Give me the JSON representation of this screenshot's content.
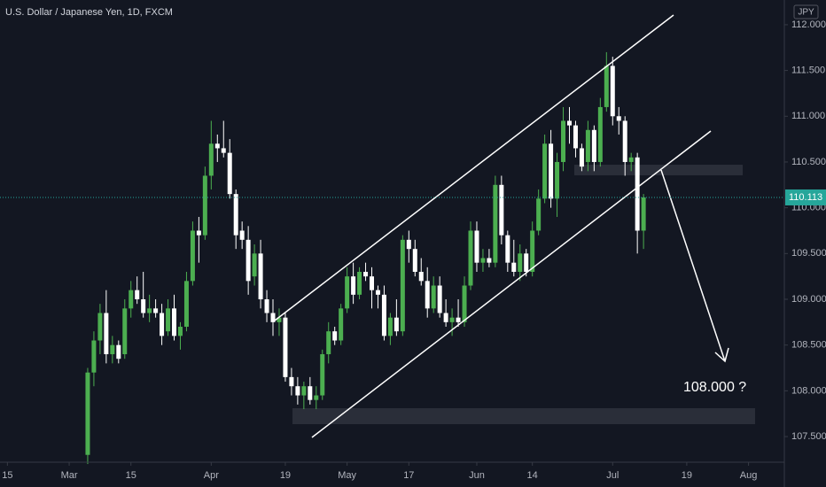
{
  "chart_data": {
    "type": "candlestick",
    "title": "U.S. Dollar / Japanese Yen, 1D, FXCM",
    "currency": "JPY",
    "x": [
      3,
      4,
      5,
      6,
      7,
      8,
      9,
      10,
      11,
      12,
      13,
      14,
      15,
      16,
      17,
      18,
      19,
      20,
      21,
      22,
      23,
      24,
      25,
      26,
      27,
      28,
      29,
      30,
      31,
      32,
      33,
      34,
      35,
      36,
      37,
      38,
      39,
      40,
      41,
      42,
      43,
      44,
      45,
      46,
      47,
      48,
      49,
      50,
      51,
      52,
      53,
      54,
      55,
      56,
      57,
      58,
      59,
      60,
      61,
      62,
      63,
      64,
      65,
      66,
      67,
      68,
      69,
      70,
      71,
      72,
      73,
      74,
      75,
      76,
      77,
      78,
      79,
      80,
      81,
      82,
      83,
      84,
      85,
      86,
      87,
      88,
      89,
      90,
      91,
      92,
      93
    ],
    "open": [
      107.3,
      108.2,
      108.55,
      108.85,
      108.4,
      108.5,
      108.4,
      108.9,
      109.1,
      109.0,
      108.85,
      108.9,
      108.85,
      108.65,
      108.9,
      108.6,
      108.7,
      109.2,
      109.75,
      109.7,
      110.35,
      110.7,
      110.65,
      110.6,
      110.15,
      109.75,
      109.65,
      109.25,
      109.5,
      109.0,
      108.85,
      108.75,
      108.8,
      108.15,
      108.05,
      107.95,
      108.05,
      107.9,
      107.95,
      108.4,
      108.65,
      108.55,
      108.9,
      109.25,
      109.05,
      109.3,
      109.25,
      109.1,
      109.05,
      108.6,
      108.8,
      108.65,
      109.65,
      109.55,
      109.3,
      109.2,
      108.9,
      109.15,
      108.85,
      108.75,
      108.8,
      108.75,
      109.15,
      109.75,
      109.4,
      109.45,
      109.4,
      110.25,
      109.7,
      109.4,
      109.3,
      109.5,
      109.3,
      109.75,
      110.1,
      110.7,
      110.1,
      110.5,
      110.95,
      110.9,
      110.65,
      110.5,
      110.85,
      110.5,
      111.1,
      111.55,
      111.0,
      110.95,
      110.5,
      110.55,
      109.75
    ],
    "high": [
      108.25,
      108.65,
      108.95,
      109.1,
      108.6,
      108.55,
      109.0,
      109.2,
      109.25,
      109.3,
      109.05,
      109.0,
      108.95,
      109.0,
      109.05,
      108.75,
      109.3,
      109.85,
      109.9,
      110.45,
      110.95,
      110.8,
      110.95,
      110.75,
      110.2,
      109.85,
      109.8,
      109.6,
      109.65,
      109.1,
      109.0,
      108.9,
      108.85,
      108.25,
      108.15,
      108.1,
      108.15,
      108.05,
      108.45,
      108.75,
      108.7,
      108.95,
      109.35,
      109.4,
      109.35,
      109.4,
      109.35,
      109.15,
      109.15,
      108.85,
      109.0,
      109.7,
      109.75,
      109.65,
      109.45,
      109.35,
      109.25,
      109.25,
      109.0,
      108.9,
      109.0,
      109.25,
      109.85,
      109.85,
      109.55,
      109.55,
      110.35,
      110.35,
      109.75,
      109.65,
      109.6,
      109.55,
      109.85,
      110.2,
      110.8,
      110.85,
      110.6,
      111.1,
      111.1,
      110.95,
      110.7,
      110.95,
      110.9,
      111.2,
      111.7,
      111.65,
      111.1,
      111.0,
      110.6,
      110.6,
      110.15
    ],
    "low": [
      107.2,
      108.05,
      108.4,
      108.3,
      108.3,
      108.3,
      108.35,
      108.8,
      108.95,
      108.8,
      108.75,
      108.8,
      108.5,
      108.6,
      108.55,
      108.45,
      108.65,
      109.15,
      109.4,
      109.65,
      110.2,
      110.5,
      110.55,
      110.1,
      109.55,
      109.55,
      109.05,
      109.15,
      108.9,
      108.75,
      108.6,
      108.6,
      108.1,
      107.95,
      107.85,
      107.8,
      107.85,
      107.8,
      107.9,
      108.3,
      108.5,
      108.5,
      108.85,
      108.95,
      109.0,
      109.2,
      108.9,
      108.9,
      108.55,
      108.5,
      108.6,
      108.6,
      109.4,
      109.25,
      109.15,
      108.8,
      108.85,
      108.8,
      108.7,
      108.6,
      108.7,
      108.7,
      109.1,
      109.3,
      109.3,
      109.35,
      109.35,
      109.6,
      109.3,
      109.25,
      109.2,
      109.25,
      109.25,
      109.7,
      110.05,
      110.0,
      109.9,
      110.4,
      110.7,
      110.55,
      110.4,
      110.4,
      110.4,
      110.45,
      111.05,
      110.9,
      110.8,
      110.35,
      110.4,
      109.5,
      109.55
    ],
    "close": [
      108.2,
      108.55,
      108.85,
      108.4,
      108.5,
      108.35,
      108.9,
      109.1,
      109.0,
      108.85,
      108.9,
      108.85,
      108.6,
      108.9,
      108.6,
      108.7,
      109.2,
      109.75,
      109.7,
      110.35,
      110.7,
      110.65,
      110.6,
      110.15,
      109.7,
      109.65,
      109.2,
      109.5,
      109.0,
      108.85,
      108.75,
      108.8,
      108.15,
      108.05,
      107.95,
      108.05,
      107.9,
      107.95,
      108.4,
      108.65,
      108.55,
      108.9,
      109.25,
      109.05,
      109.3,
      109.25,
      109.1,
      109.05,
      108.6,
      108.8,
      108.65,
      109.65,
      109.55,
      109.3,
      109.2,
      108.9,
      109.15,
      108.85,
      108.75,
      108.8,
      108.75,
      109.15,
      109.75,
      109.4,
      109.45,
      109.4,
      110.25,
      109.7,
      109.4,
      109.3,
      109.5,
      109.3,
      109.75,
      110.1,
      110.7,
      110.1,
      110.5,
      110.95,
      110.9,
      110.65,
      110.45,
      110.85,
      110.5,
      111.1,
      111.55,
      111.0,
      110.95,
      110.5,
      110.55,
      109.75,
      110.113
    ],
    "up_color": "#4caf50",
    "down_color": "#ffffff",
    "last_price": 110.113,
    "last_price_color": "#26a69a",
    "annotation": "108.000 ?",
    "xlim": [
      -11.2,
      115.8
    ],
    "xticks": [
      {
        "value": -10,
        "label": "15"
      },
      {
        "value": 0,
        "label": "Mar"
      },
      {
        "value": 10,
        "label": "15"
      },
      {
        "value": 23,
        "label": "Apr"
      },
      {
        "value": 35,
        "label": "19"
      },
      {
        "value": 45,
        "label": "May"
      },
      {
        "value": 55,
        "label": "17"
      },
      {
        "value": 66,
        "label": "Jun"
      },
      {
        "value": 75,
        "label": "14"
      },
      {
        "value": 88,
        "label": "Jul"
      },
      {
        "value": 100,
        "label": "19"
      },
      {
        "value": 110,
        "label": "Aug"
      }
    ],
    "ylim": [
      107.22,
      112.27
    ],
    "yticks": [
      {
        "value": 107.5,
        "label": "107.500"
      },
      {
        "value": 108,
        "label": "108.000"
      },
      {
        "value": 108.5,
        "label": "108.500"
      },
      {
        "value": 109,
        "label": "109.000"
      },
      {
        "value": 109.5,
        "label": "109.500"
      },
      {
        "value": 110,
        "label": "110.000"
      },
      {
        "value": 110.5,
        "label": "110.500"
      },
      {
        "value": 111,
        "label": "111.000"
      },
      {
        "value": 111.5,
        "label": "111.500"
      },
      {
        "value": 112,
        "label": "112.000"
      }
    ]
  }
}
